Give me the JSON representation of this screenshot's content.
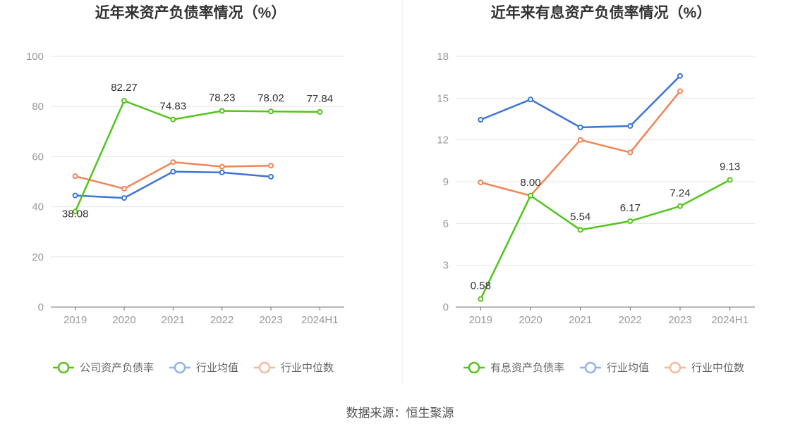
{
  "source_text": "数据来源：恒生聚源",
  "chart_data": [
    {
      "type": "line",
      "title": "近年来资产负债率情况（%）",
      "categories": [
        "2019",
        "2020",
        "2021",
        "2022",
        "2023",
        "2024H1"
      ],
      "ylim": [
        0,
        100
      ],
      "yticks": [
        0,
        20,
        40,
        60,
        80,
        100
      ],
      "grid": true,
      "legend_position": "bottom",
      "series": [
        {
          "name": "公司资产负债率",
          "color": "#52c41a",
          "values": [
            38.08,
            82.27,
            74.83,
            78.23,
            78.02,
            77.84
          ],
          "labels": [
            "38.08",
            "82.27",
            "74.83",
            "78.23",
            "78.02",
            "77.84"
          ]
        },
        {
          "name": "行业均值",
          "color": "#3a75d6",
          "values": [
            44.5,
            43.5,
            54.0,
            53.7,
            52.0,
            null
          ]
        },
        {
          "name": "行业中位数",
          "color": "#f08556",
          "values": [
            52.2,
            47.2,
            57.8,
            56.0,
            56.4,
            null
          ]
        }
      ]
    },
    {
      "type": "line",
      "title": "近年来有息资产负债率情况（%）",
      "categories": [
        "2019",
        "2020",
        "2021",
        "2022",
        "2023",
        "2024H1"
      ],
      "ylim": [
        0,
        18
      ],
      "yticks": [
        0,
        3,
        6,
        9,
        12,
        15,
        18
      ],
      "grid": true,
      "legend_position": "bottom",
      "series": [
        {
          "name": "有息资产负债率",
          "color": "#52c41a",
          "values": [
            0.58,
            8.0,
            5.54,
            6.17,
            7.24,
            9.13
          ],
          "labels": [
            "0.58",
            "8.00",
            "5.54",
            "6.17",
            "7.24",
            "9.13"
          ]
        },
        {
          "name": "行业均值",
          "color": "#3a75d6",
          "values": [
            13.45,
            14.9,
            12.9,
            13.0,
            16.6,
            null
          ]
        },
        {
          "name": "行业中位数",
          "color": "#f08556",
          "values": [
            8.95,
            8.0,
            12.0,
            11.1,
            15.5,
            null
          ]
        }
      ]
    }
  ]
}
